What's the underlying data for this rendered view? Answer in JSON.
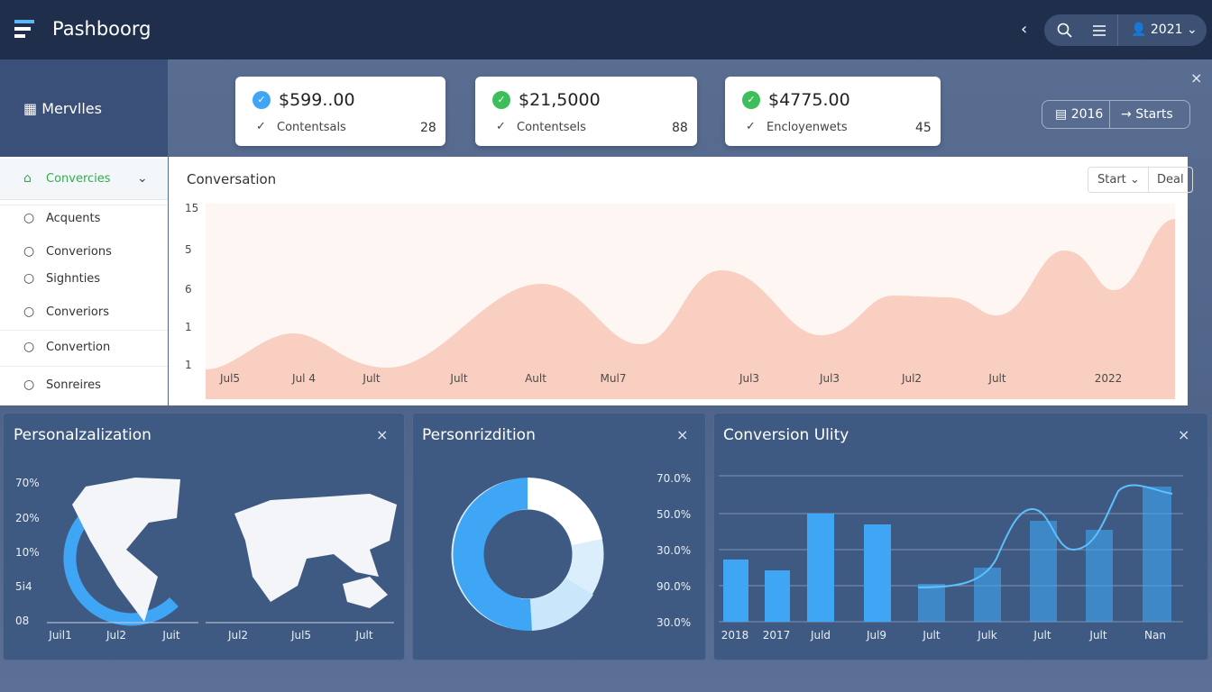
{
  "header": {
    "brand": "Pashboorg",
    "year": "2021"
  },
  "sidebar": {
    "title": "Mervlles",
    "items": [
      "Convercies",
      "Acquents",
      "Converions",
      "Sighnties",
      "Converiors",
      "Convertion",
      "Sonreires"
    ]
  },
  "stats": [
    {
      "value": "$599..00",
      "label": "Contentsals",
      "count": "28"
    },
    {
      "value": "$21,5000",
      "label": "Contentsels",
      "count": "88"
    },
    {
      "value": "$4775.00",
      "label": "Encloyenwets",
      "count": "45"
    }
  ],
  "toolbar": {
    "range": "2016",
    "action": "Starts"
  },
  "main_chart": {
    "title": "Conversation",
    "buttons": [
      "Start",
      "Deal"
    ],
    "y_labels": [
      "15",
      "5",
      "6",
      "1",
      "1"
    ],
    "x_labels": [
      "Jul5",
      "Jul 4",
      "Jult",
      "Jult",
      "Ault",
      "Mul7",
      "Jul3",
      "Jul3",
      "Jul2",
      "Jult",
      "2022"
    ]
  },
  "panels": [
    {
      "title": "Personalzalization",
      "y_labels": [
        "70%",
        "20%",
        "10%",
        "5i4",
        "08"
      ],
      "x_labels": [
        "Juil1",
        "Jul2",
        "Juit",
        "Jul2",
        "Jul5",
        "Jult"
      ]
    },
    {
      "title": "Personrizdition",
      "labels": [
        "70.0%",
        "50.0%",
        "30.0%",
        "90.0%",
        "30.0%"
      ]
    },
    {
      "title": "Conversion Ulity",
      "x_labels": [
        "2018",
        "2017",
        "Juld",
        "Jul9",
        "Jult",
        "Julk",
        "Jult",
        "Jult",
        "Nan"
      ]
    }
  ]
}
